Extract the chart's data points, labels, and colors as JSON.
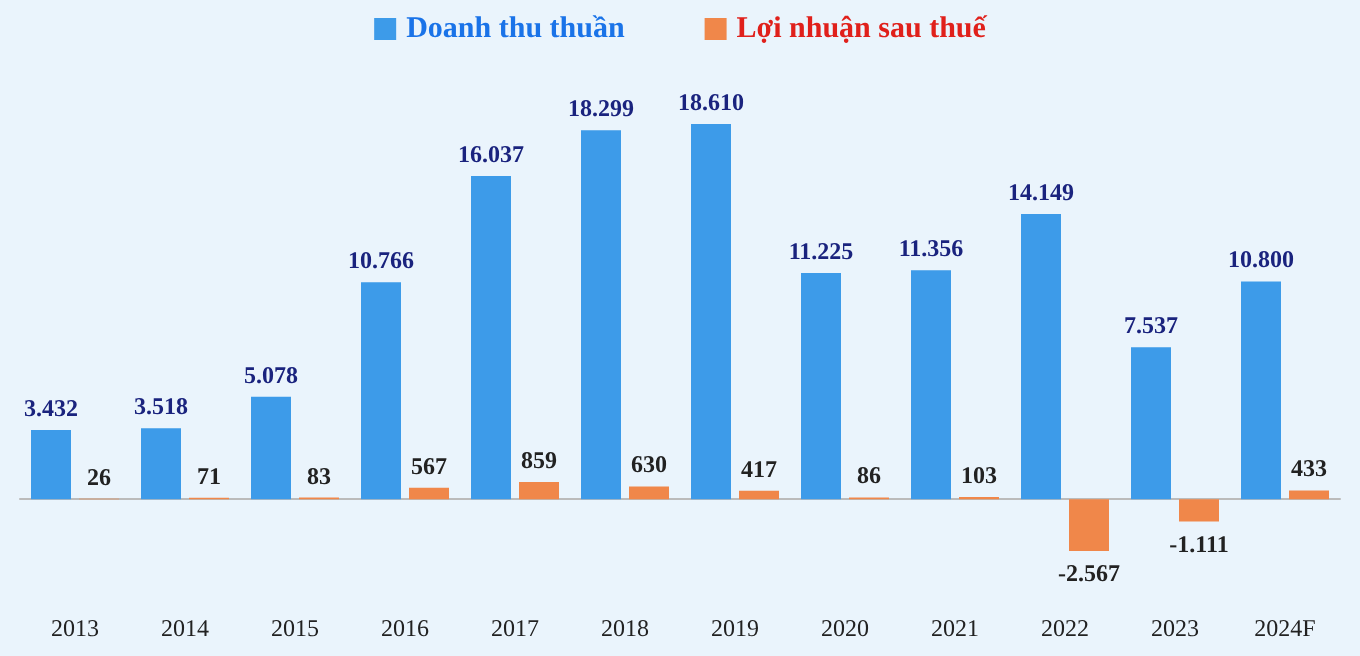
{
  "chart_data": {
    "type": "bar",
    "categories": [
      "2013",
      "2014",
      "2015",
      "2016",
      "2017",
      "2018",
      "2019",
      "2020",
      "2021",
      "2022",
      "2023",
      "2024F"
    ],
    "series": [
      {
        "name": "Doanh thu thuần",
        "color": "#3d9be9",
        "values": [
          3432,
          3518,
          5078,
          10766,
          16037,
          18299,
          18610,
          11225,
          11356,
          14149,
          7537,
          10800
        ],
        "value_labels": [
          "3.432",
          "3.518",
          "5.078",
          "10.766",
          "16.037",
          "18.299",
          "18.610",
          "11.225",
          "11.356",
          "14.149",
          "7.537",
          "10.800"
        ]
      },
      {
        "name": "Lợi nhuận sau thuế",
        "color": "#f0874a",
        "values": [
          26,
          71,
          83,
          567,
          859,
          630,
          417,
          86,
          103,
          -2567,
          -1111,
          433
        ],
        "value_labels": [
          "26",
          "71",
          "83",
          "567",
          "859",
          "630",
          "417",
          "86",
          "103",
          "-2.567",
          "-1.111",
          "433"
        ]
      }
    ],
    "legend": "top",
    "tick_labels": "x"
  }
}
